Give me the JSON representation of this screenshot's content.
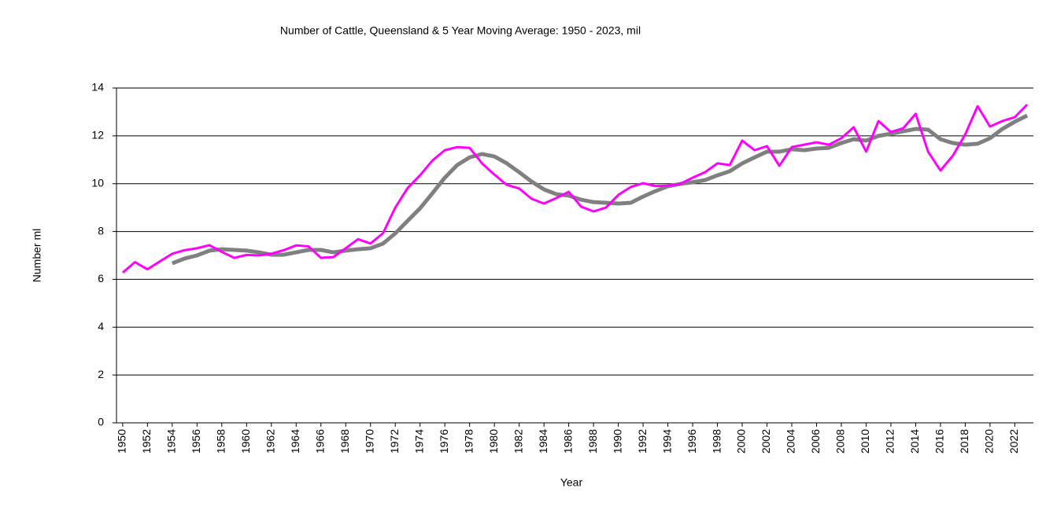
{
  "chart_data": {
    "type": "line",
    "title": "Number of  Cattle, Queensland & 5 Year Moving Average: 1950 - 2023, mil",
    "x_label": "Year",
    "y_label": "Number ml",
    "x": [
      1950,
      1951,
      1952,
      1953,
      1954,
      1955,
      1956,
      1957,
      1958,
      1959,
      1960,
      1961,
      1962,
      1963,
      1964,
      1965,
      1966,
      1967,
      1968,
      1969,
      1970,
      1971,
      1972,
      1973,
      1974,
      1975,
      1976,
      1977,
      1978,
      1979,
      1980,
      1981,
      1982,
      1983,
      1984,
      1985,
      1986,
      1987,
      1988,
      1989,
      1990,
      1991,
      1992,
      1993,
      1994,
      1995,
      1996,
      1997,
      1998,
      1999,
      2000,
      2001,
      2002,
      2003,
      2004,
      2005,
      2006,
      2007,
      2008,
      2009,
      2010,
      2011,
      2012,
      2013,
      2014,
      2015,
      2016,
      2017,
      2018,
      2019,
      2020,
      2021,
      2022,
      2023
    ],
    "series": [
      {
        "color": "#ff00ff",
        "width": 3,
        "values": [
          6.28,
          6.72,
          6.42,
          6.75,
          7.07,
          7.22,
          7.3,
          7.43,
          7.15,
          6.9,
          7.02,
          7.0,
          7.07,
          7.22,
          7.42,
          7.38,
          6.9,
          6.93,
          7.3,
          7.68,
          7.5,
          7.92,
          9.0,
          9.82,
          10.35,
          10.97,
          11.4,
          11.53,
          11.5,
          10.85,
          10.38,
          9.95,
          9.8,
          9.37,
          9.17,
          9.4,
          9.66,
          9.04,
          8.84,
          9.0,
          9.53,
          9.86,
          10.02,
          9.9,
          9.92,
          9.99,
          10.25,
          10.48,
          10.85,
          10.78,
          11.8,
          11.4,
          11.57,
          10.75,
          11.53,
          11.63,
          11.73,
          11.63,
          11.9,
          12.36,
          11.34,
          12.62,
          12.16,
          12.32,
          12.92,
          11.34,
          10.55,
          11.17,
          12.06,
          13.24,
          12.39,
          12.62,
          12.78,
          13.31
        ]
      },
      {
        "color": "#808080",
        "width": 5,
        "values": [
          null,
          null,
          null,
          null,
          6.67,
          6.87,
          7.0,
          7.2,
          7.26,
          7.23,
          7.2,
          7.13,
          7.03,
          7.03,
          7.13,
          7.23,
          7.23,
          7.13,
          7.2,
          7.26,
          7.3,
          7.49,
          7.92,
          8.45,
          8.97,
          9.6,
          10.25,
          10.78,
          11.1,
          11.24,
          11.14,
          10.85,
          10.48,
          10.09,
          9.76,
          9.56,
          9.5,
          9.33,
          9.23,
          9.2,
          9.17,
          9.2,
          9.46,
          9.69,
          9.89,
          9.99,
          10.06,
          10.15,
          10.35,
          10.52,
          10.85,
          11.1,
          11.34,
          11.34,
          11.44,
          11.4,
          11.47,
          11.5,
          11.7,
          11.86,
          11.8,
          12.0,
          12.09,
          12.19,
          12.29,
          12.26,
          11.86,
          11.7,
          11.63,
          11.67,
          11.9,
          12.29,
          12.59,
          12.85
        ]
      }
    ],
    "xlim": [
      1949.5,
      2023.5
    ],
    "xticks": [
      1950,
      1952,
      1954,
      1956,
      1958,
      1960,
      1962,
      1964,
      1966,
      1968,
      1970,
      1972,
      1974,
      1976,
      1978,
      1980,
      1982,
      1984,
      1986,
      1988,
      1990,
      1992,
      1994,
      1996,
      1998,
      2000,
      2002,
      2004,
      2006,
      2008,
      2010,
      2012,
      2014,
      2016,
      2018,
      2020,
      2022
    ],
    "ylim": [
      0,
      14
    ],
    "yticks": [
      0,
      2,
      4,
      6,
      8,
      10,
      12,
      14
    ],
    "grid": true
  }
}
